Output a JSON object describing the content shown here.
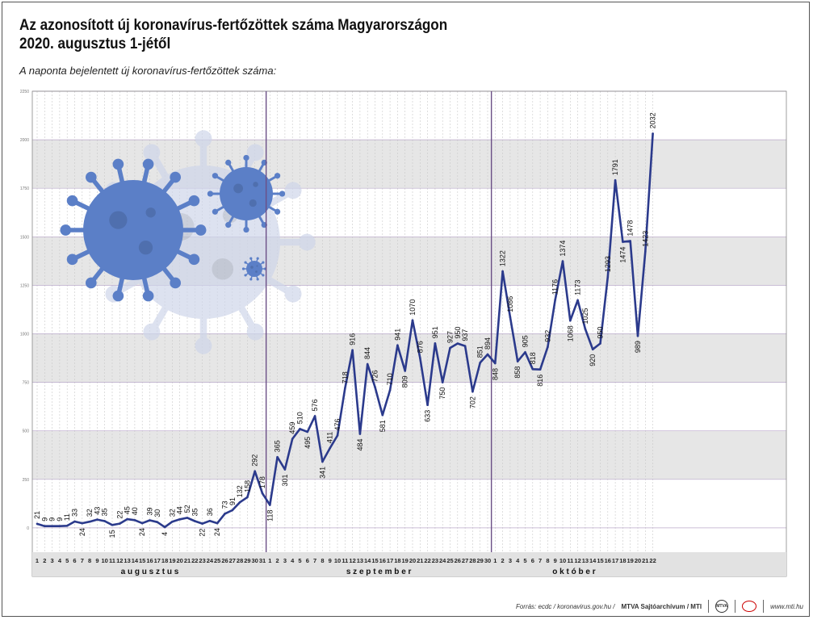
{
  "header": {
    "title_line1": "Az azonosított új koronavírus-fertőzöttek száma Magyarországon",
    "title_line2": "2020. augusztus 1-jétől",
    "subtitle": "A naponta bejelentett új koronavírus-fertőzöttek száma:"
  },
  "footer": {
    "source": "Forrás: ecdc / koronavirus.gov.hu /",
    "credit": "MTVA Sajtóarchívum / MTI",
    "logo1": "MTVA",
    "website": "www.mti.hu"
  },
  "chart_data": {
    "type": "line",
    "title": "Az azonosított új koronavírus-fertőzöttek száma Magyarországon 2020. augusztus 1-jétől",
    "ylim": [
      -250,
      2250
    ],
    "yticks": [
      0,
      250,
      500,
      750,
      1000,
      1250,
      1500,
      1750,
      2000,
      2250
    ],
    "grid": true,
    "colors": {
      "line": "#2b3a8c",
      "band": "#e6e6e6",
      "month_divider": "#6b4f86",
      "axis_strip": "#e2e2e2"
    },
    "months": [
      {
        "name": "augusztus",
        "days": [
          "1",
          "2",
          "3",
          "4",
          "5",
          "6",
          "7",
          "8",
          "9",
          "10",
          "11",
          "12",
          "13",
          "14",
          "15",
          "16",
          "17",
          "18",
          "19",
          "20",
          "21",
          "22",
          "23",
          "24",
          "25",
          "26",
          "27",
          "28",
          "29",
          "30",
          "31"
        ],
        "values": [
          21,
          9,
          9,
          9,
          11,
          33,
          24,
          32,
          43,
          35,
          15,
          22,
          45,
          40,
          24,
          39,
          30,
          4,
          32,
          44,
          52,
          35,
          22,
          36,
          24,
          73,
          91,
          132,
          158,
          292,
          178
        ]
      },
      {
        "name": "szeptember",
        "days": [
          "1",
          "2",
          "3",
          "4",
          "5",
          "6",
          "7",
          "8",
          "9",
          "10",
          "11",
          "12",
          "13",
          "14",
          "15",
          "16",
          "17",
          "18",
          "19",
          "20",
          "21",
          "22",
          "23",
          "24",
          "25",
          "26",
          "27",
          "28",
          "29",
          "30"
        ],
        "values": [
          118,
          365,
          301,
          459,
          510,
          495,
          576,
          341,
          411,
          476,
          718,
          916,
          484,
          844,
          726,
          581,
          710,
          941,
          809,
          1070,
          876,
          633,
          951,
          750,
          927,
          950,
          937,
          702,
          851,
          894
        ]
      },
      {
        "name": "október",
        "days": [
          "1",
          "2",
          "3",
          "4",
          "5",
          "6",
          "7",
          "8",
          "9",
          "10",
          "11",
          "12",
          "13",
          "14",
          "15",
          "16",
          "17",
          "18",
          "19",
          "20",
          "21",
          "22"
        ],
        "values": [
          848,
          1322,
          1086,
          858,
          905,
          818,
          816,
          932,
          1176,
          1374,
          1068,
          1173,
          1025,
          920,
          950,
          1293,
          1791,
          1474,
          1478,
          989,
          1423,
          2032
        ]
      }
    ],
    "month_labels": [
      "a u g u s z t u s",
      "s z e p t e m b e r",
      "o k t ó b e r"
    ]
  }
}
